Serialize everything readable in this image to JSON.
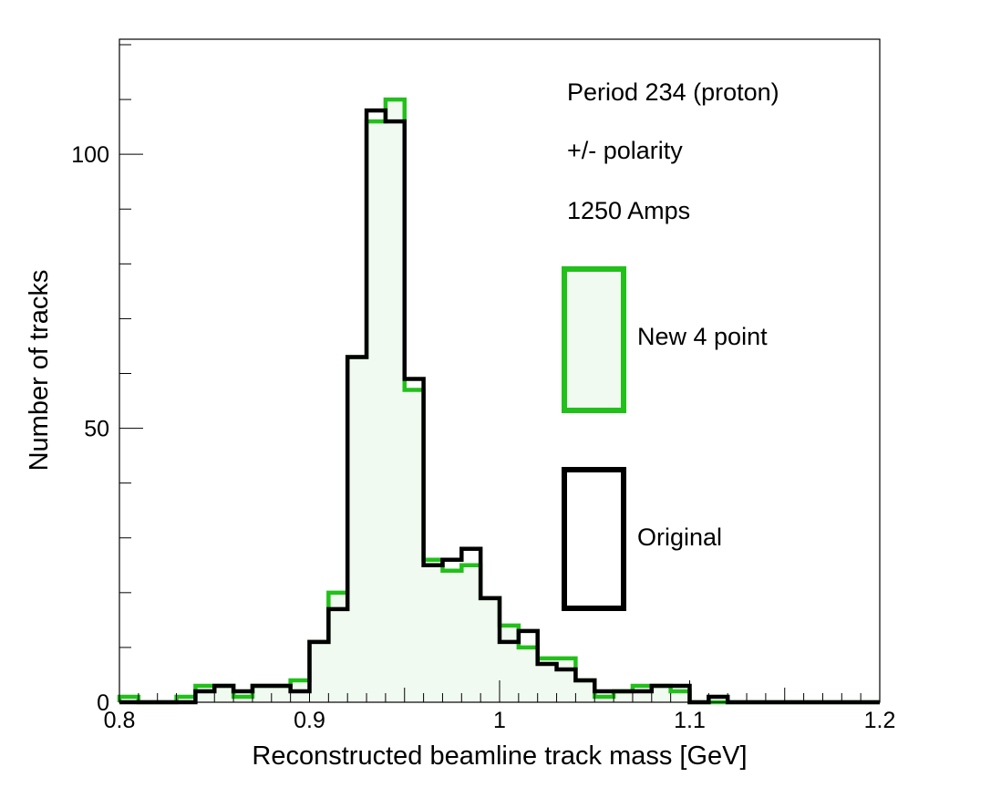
{
  "chart_data": {
    "type": "histogram",
    "xlabel": "Reconstructed beamline track mass [GeV]",
    "ylabel": "Number of tracks",
    "xlim": [
      0.8,
      1.2
    ],
    "ylim": [
      0,
      121
    ],
    "bin_width": 0.01,
    "x_major_ticks": [
      0.8,
      0.9,
      1.0,
      1.1,
      1.2
    ],
    "x_tick_labels": [
      "0.8",
      "0.9",
      "1",
      "1.1",
      "1.2"
    ],
    "y_major_ticks": [
      0,
      50,
      100
    ],
    "y_tick_labels": [
      "0",
      "50",
      "100"
    ],
    "grid": false,
    "annotations": [
      "Period 234 (proton)",
      "+/- polarity",
      "1250 Amps"
    ],
    "legend_position": "right",
    "bin_edges": [
      0.8,
      0.81,
      0.82,
      0.83,
      0.84,
      0.85,
      0.86,
      0.87,
      0.88,
      0.89,
      0.9,
      0.91,
      0.92,
      0.93,
      0.94,
      0.95,
      0.96,
      0.97,
      0.98,
      0.99,
      1.0,
      1.01,
      1.02,
      1.03,
      1.04,
      1.05,
      1.06,
      1.07,
      1.08,
      1.09,
      1.1,
      1.11,
      1.12,
      1.13,
      1.14,
      1.15,
      1.16,
      1.17,
      1.18,
      1.19,
      1.2
    ],
    "series": [
      {
        "name": "New 4 point",
        "color": "#22c01a",
        "fill": "#f1faf0",
        "values": [
          1,
          0,
          0,
          1,
          3,
          3,
          1,
          3,
          3,
          4,
          11,
          20,
          63,
          106,
          110,
          57,
          26,
          24,
          25,
          19,
          14,
          10,
          8,
          8,
          4,
          1,
          2,
          3,
          3,
          2,
          0,
          0,
          0,
          0,
          0,
          0,
          0,
          0,
          0,
          0
        ]
      },
      {
        "name": "Original",
        "color": "#000000",
        "fill": "none",
        "values": [
          0,
          0,
          0,
          0,
          2,
          3,
          2,
          3,
          3,
          2,
          11,
          17,
          63,
          108,
          106,
          59,
          25,
          26,
          28,
          19,
          11,
          13,
          7,
          6,
          4,
          2,
          2,
          2,
          3,
          3,
          0,
          1,
          0,
          0,
          0,
          0,
          0,
          0,
          0,
          0
        ]
      }
    ]
  }
}
